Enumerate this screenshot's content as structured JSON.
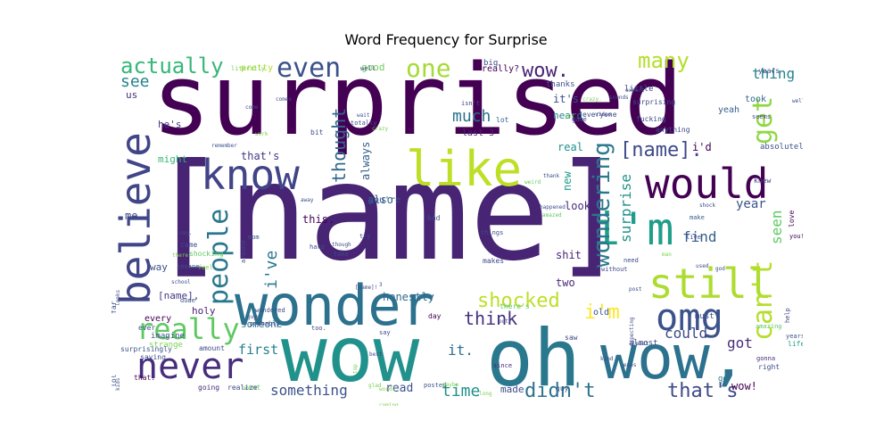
{
  "chart_data": {
    "type": "wordcloud",
    "title": "Word Frequency for Surprise",
    "words": [
      {
        "text": "[name]",
        "size": 150,
        "color": "#482475"
      },
      {
        "text": "surprised",
        "size": 110,
        "color": "#440154"
      },
      {
        "text": "wonder",
        "size": 62,
        "color": "#2c728e"
      },
      {
        "text": "wow",
        "size": 86,
        "color": "#21918c"
      },
      {
        "text": "oh",
        "size": 88,
        "color": "#2a788e"
      },
      {
        "text": "wow,",
        "size": 68,
        "color": "#2c728e"
      },
      {
        "text": "like",
        "size": 54,
        "color": "#bddf26"
      },
      {
        "text": "know",
        "size": 46,
        "color": "#414487"
      },
      {
        "text": "would",
        "size": 46,
        "color": "#440154"
      },
      {
        "text": "believe",
        "size": 46,
        "color": "#404688"
      },
      {
        "text": "i'm",
        "size": 50,
        "color": "#1f9e89"
      },
      {
        "text": "still",
        "size": 46,
        "color": "#addc30"
      },
      {
        "text": "omg",
        "size": 42,
        "color": "#3b528b"
      },
      {
        "text": "never",
        "size": 40,
        "color": "#472d7b"
      },
      {
        "text": "even",
        "size": 30,
        "color": "#3b528b"
      },
      {
        "text": "one",
        "size": 28,
        "color": "#a5db36"
      },
      {
        "text": "get",
        "size": 30,
        "color": "#8fd744"
      },
      {
        "text": "can't",
        "size": 30,
        "color": "#b5de2b"
      },
      {
        "text": "people",
        "size": 30,
        "color": "#2a788e"
      },
      {
        "text": "really",
        "size": 32,
        "color": "#5ec962"
      },
      {
        "text": "wondering",
        "size": 26,
        "color": "#2a788e"
      },
      {
        "text": "actually",
        "size": 24,
        "color": "#35b779"
      },
      {
        "text": "many",
        "size": 24,
        "color": "#b5de2b"
      },
      {
        "text": "wow.",
        "size": 22,
        "color": "#482475"
      },
      {
        "text": "shocked",
        "size": 22,
        "color": "#bddf26"
      },
      {
        "text": "i'm",
        "size": 22,
        "color": "#fde725"
      },
      {
        "text": "didn't",
        "size": 22,
        "color": "#2c728e"
      },
      {
        "text": "that's",
        "size": 22,
        "color": "#3e4a89"
      },
      {
        "text": "[name].",
        "size": 22,
        "color": "#3e4a89"
      },
      {
        "text": "thought",
        "size": 20,
        "color": "#31688e"
      },
      {
        "text": "think",
        "size": 20,
        "color": "#46337e"
      },
      {
        "text": "much",
        "size": 18,
        "color": "#2c728e"
      },
      {
        "text": "time",
        "size": 18,
        "color": "#21918c"
      },
      {
        "text": "something",
        "size": 16,
        "color": "#3b528b"
      },
      {
        "text": "see",
        "size": 18,
        "color": "#26828e"
      },
      {
        "text": "thing",
        "size": 16,
        "color": "#26828e"
      },
      {
        "text": "i've",
        "size": 18,
        "color": "#2a788e"
      },
      {
        "text": "surprise",
        "size": 16,
        "color": "#21918c"
      },
      {
        "text": "find",
        "size": 16,
        "color": "#355f8d"
      },
      {
        "text": "seen",
        "size": 16,
        "color": "#5ec962"
      },
      {
        "text": "could",
        "size": 16,
        "color": "#3e4a89"
      },
      {
        "text": "got",
        "size": 16,
        "color": "#472d7b"
      },
      {
        "text": "it.",
        "size": 16,
        "color": "#2c728e"
      },
      {
        "text": "first",
        "size": 15,
        "color": "#26828e"
      },
      {
        "text": "year",
        "size": 14,
        "color": "#3b528b"
      },
      {
        "text": "me.",
        "size": 12,
        "color": "#3e4a89"
      },
      {
        "text": "wow!",
        "size": 12,
        "color": "#440154"
      },
      {
        "text": "honestly",
        "size": 12,
        "color": "#31688e"
      },
      {
        "text": "read",
        "size": 13,
        "color": "#3b528b"
      },
      {
        "text": "two",
        "size": 12,
        "color": "#482878"
      },
      {
        "text": "new",
        "size": 12,
        "color": "#1f9e89"
      },
      {
        "text": "look",
        "size": 12,
        "color": "#472d7b"
      },
      {
        "text": "made",
        "size": 11,
        "color": "#3e4a89"
      },
      {
        "text": "this.",
        "size": 12,
        "color": "#440154"
      },
      {
        "text": "that's",
        "size": 12,
        "color": "#443983"
      },
      {
        "text": "also",
        "size": 12,
        "color": "#31688e"
      },
      {
        "text": "always",
        "size": 12,
        "color": "#355f8d"
      },
      {
        "text": "last 3",
        "size": 10,
        "color": "#482475"
      },
      {
        "text": "it's",
        "size": 12,
        "color": "#3b528b"
      },
      {
        "text": "heard",
        "size": 11,
        "color": "#277f8e"
      },
      {
        "text": "real",
        "size": 12,
        "color": "#21918c"
      },
      {
        "text": "shit",
        "size": 12,
        "color": "#481f70"
      },
      {
        "text": "i'd",
        "size": 12,
        "color": "#440154"
      },
      {
        "text": "took",
        "size": 10,
        "color": "#31688e"
      },
      {
        "text": "yeah",
        "size": 10,
        "color": "#355f8d"
      },
      {
        "text": "us",
        "size": 11,
        "color": "#472d7b"
      },
      {
        "text": "he's",
        "size": 11,
        "color": "#443983"
      },
      {
        "text": "might",
        "size": 11,
        "color": "#35b779"
      },
      {
        "text": "way",
        "size": 11,
        "color": "#3b528b"
      },
      {
        "text": "[name],",
        "size": 11,
        "color": "#443983"
      },
      {
        "text": "holy",
        "size": 11,
        "color": "#481f70"
      },
      {
        "text": "every",
        "size": 10,
        "color": "#440154"
      },
      {
        "text": "someone",
        "size": 11,
        "color": "#2c728e"
      },
      {
        "text": "old",
        "size": 10,
        "color": "#3b528b"
      },
      {
        "text": "good",
        "size": 11,
        "color": "#6ece58"
      },
      {
        "text": "really?",
        "size": 10,
        "color": "#440154"
      },
      {
        "text": "you're",
        "size": 10,
        "color": "#3b528b"
      },
      {
        "text": "must",
        "size": 9,
        "color": "#3e4a89"
      },
      {
        "text": "absolutely",
        "size": 9,
        "color": "#3b528b"
      },
      {
        "text": "pretty",
        "size": 10,
        "color": "#addc30"
      },
      {
        "text": "thanks",
        "size": 9,
        "color": "#3b528b"
      },
      {
        "text": "little",
        "size": 9,
        "color": "#3e4a89"
      },
      {
        "text": "years",
        "size": 8,
        "color": "#3e4a89"
      },
      {
        "text": "love",
        "size": 8,
        "color": "#440154"
      },
      {
        "text": "you!",
        "size": 7,
        "color": "#440154"
      },
      {
        "text": "go",
        "size": 9,
        "color": "#2a788e"
      },
      {
        "text": "right",
        "size": 8,
        "color": "#3e4a89"
      },
      {
        "text": "gonna",
        "size": 7,
        "color": "#472d7b"
      },
      {
        "text": "life",
        "size": 8,
        "color": "#1f9e89"
      },
      {
        "text": "help",
        "size": 7,
        "color": "#3e4a89"
      },
      {
        "text": "years.",
        "size": 7,
        "color": "#3b528b"
      },
      {
        "text": "amazing",
        "size": 7,
        "color": "#5ec962"
      },
      {
        "text": "anything",
        "size": 8,
        "color": "#3e4a89"
      },
      {
        "text": "knew",
        "size": 8,
        "color": "#443983"
      },
      {
        "text": "make",
        "size": 7,
        "color": "#355f8d"
      },
      {
        "text": "live",
        "size": 7,
        "color": "#3e4a89"
      },
      {
        "text": "almost",
        "size": 9,
        "color": "#3e4a89"
      },
      {
        "text": "posted",
        "size": 7,
        "color": "#3b528b"
      },
      {
        "text": "since",
        "size": 7,
        "color": "#482878"
      },
      {
        "text": "guy",
        "size": 8,
        "color": "#3b528b"
      },
      {
        "text": "saw",
        "size": 8,
        "color": "#3e4a89"
      },
      {
        "text": "day",
        "size": 8,
        "color": "#440154"
      },
      {
        "text": "went",
        "size": 8,
        "color": "#6ece58"
      },
      {
        "text": "realize",
        "size": 8,
        "color": "#3e4a89"
      },
      {
        "text": "going",
        "size": 8,
        "color": "#472d7b"
      },
      {
        "text": "that.",
        "size": 8,
        "color": "#440154"
      },
      {
        "text": "saying",
        "size": 8,
        "color": "#3e4a89"
      },
      {
        "text": "strange",
        "size": 9,
        "color": "#7ad151"
      },
      {
        "text": "amount",
        "size": 8,
        "color": "#3e4a89"
      },
      {
        "text": "imagine",
        "size": 9,
        "color": "#3b528b"
      },
      {
        "text": "ever",
        "size": 8,
        "color": "#3b528b"
      },
      {
        "text": "surprisingly",
        "size": 8,
        "color": "#3b528b"
      },
      {
        "text": "lol",
        "size": 8,
        "color": "#3b528b"
      },
      {
        "text": "far",
        "size": 8,
        "color": "#3b528b"
      },
      {
        "text": "came",
        "size": 8,
        "color": "#3e4a89"
      },
      {
        "text": "shocking",
        "size": 8,
        "color": "#5ec962"
      },
      {
        "text": "insane",
        "size": 7,
        "color": "#3b528b"
      },
      {
        "text": "mom",
        "size": 7,
        "color": "#3b528b"
      },
      {
        "text": "dude",
        "size": 7,
        "color": "#3b528b"
      },
      {
        "text": "feel",
        "size": 7,
        "color": "#7ad151"
      },
      {
        "text": "remember",
        "size": 6,
        "color": "#3b528b"
      },
      {
        "text": "literally",
        "size": 7,
        "color": "#7ad151"
      },
      {
        "text": "come",
        "size": 6,
        "color": "#3e4a89"
      },
      {
        "text": "comes",
        "size": 6,
        "color": "#3e4a89"
      },
      {
        "text": "isn't",
        "size": 7,
        "color": "#3e4a89"
      },
      {
        "text": "totally",
        "size": 7,
        "color": "#3e4a89"
      },
      {
        "text": "bit",
        "size": 8,
        "color": "#3b528b"
      },
      {
        "text": "wait",
        "size": 6,
        "color": "#3b528b"
      },
      {
        "text": "lot",
        "size": 8,
        "color": "#355f8d"
      },
      {
        "text": "well",
        "size": 7,
        "color": "#3e4a89"
      },
      {
        "text": "big",
        "size": 9,
        "color": "#3e4a89"
      },
      {
        "text": "fucking",
        "size": 8,
        "color": "#3e4a89"
      },
      {
        "text": "seems",
        "size": 7,
        "color": "#3e4a89"
      },
      {
        "text": "surprising",
        "size": 8,
        "color": "#3e4a89"
      },
      {
        "text": "everyone",
        "size": 8,
        "color": "#3e4a89"
      },
      {
        "text": "game",
        "size": 7,
        "color": "#3e4a89"
      },
      {
        "text": "video",
        "size": 6,
        "color": "#3e4a89"
      },
      {
        "text": "thank",
        "size": 6,
        "color": "#3e4a89"
      },
      {
        "text": "weird",
        "size": 6,
        "color": "#5ec962"
      },
      {
        "text": "bad",
        "size": 8,
        "color": "#3e4a89"
      },
      {
        "text": "things",
        "size": 7,
        "color": "#3e4a89"
      },
      {
        "text": "amazed",
        "size": 6,
        "color": "#5ec962"
      },
      {
        "text": "happened",
        "size": 6,
        "color": "#3e4a89"
      },
      {
        "text": "try",
        "size": 7,
        "color": "#3e4a89"
      },
      {
        "text": "makes",
        "size": 8,
        "color": "#3e4a89"
      },
      {
        "text": "hard",
        "size": 7,
        "color": "#3e4a89"
      },
      {
        "text": "take",
        "size": 7,
        "color": "#3e4a89"
      },
      {
        "text": "without",
        "size": 7,
        "color": "#3e4a89"
      },
      {
        "text": "need",
        "size": 7,
        "color": "#3e4a89"
      },
      {
        "text": "used",
        "size": 6,
        "color": "#3e4a89"
      },
      {
        "text": "god",
        "size": 6,
        "color": "#3e4a89"
      },
      {
        "text": "man",
        "size": 6,
        "color": "#7ad151"
      },
      {
        "text": "post",
        "size": 6,
        "color": "#3e4a89"
      },
      {
        "text": "there's",
        "size": 8,
        "color": "#5ec962"
      },
      {
        "text": "around",
        "size": 7,
        "color": "#3e4a89"
      },
      {
        "text": "guys",
        "size": 6,
        "color": "#3e4a89"
      },
      {
        "text": "probably",
        "size": 7,
        "color": "#3e4a89"
      },
      {
        "text": "wondered",
        "size": 7,
        "color": "#3e4a89"
      },
      {
        "text": "too.",
        "size": 7,
        "color": "#3e4a89"
      },
      {
        "text": "expecting",
        "size": 6,
        "color": "#3e4a89"
      },
      {
        "text": "least",
        "size": 6,
        "color": "#3e4a89"
      },
      {
        "text": "school",
        "size": 6,
        "color": "#3e4a89"
      },
      {
        "text": "looks",
        "size": 6,
        "color": "#3e4a89"
      },
      {
        "text": "kind",
        "size": 6,
        "color": "#3e4a89"
      },
      {
        "text": "kids",
        "size": 6,
        "color": "#3e4a89"
      },
      {
        "text": "crazy",
        "size": 6,
        "color": "#7ad151"
      },
      {
        "text": "though",
        "size": 6,
        "color": "#3e4a89"
      },
      {
        "text": "say",
        "size": 7,
        "color": "#3e4a89"
      },
      {
        "text": "best",
        "size": 6,
        "color": "#3e4a89"
      },
      {
        "text": "glad",
        "size": 6,
        "color": "#7ad151"
      },
      {
        "text": "words",
        "size": 6,
        "color": "#7ad151"
      },
      {
        "text": "maybe",
        "size": 6,
        "color": "#7ad151"
      },
      {
        "text": "eyes",
        "size": 6,
        "color": "#3e4a89"
      },
      {
        "text": "expect",
        "size": 6,
        "color": "#3e4a89"
      },
      {
        "text": "sounds",
        "size": 6,
        "color": "#3e4a89"
      },
      {
        "text": "shock",
        "size": 6,
        "color": "#3e4a89"
      },
      {
        "text": "crazy.",
        "size": 6,
        "color": "#7ad151"
      },
      {
        "text": "omg.",
        "size": 6,
        "color": "#3e4a89"
      },
      {
        "text": "away",
        "size": 6,
        "color": "#3e4a89"
      },
      {
        "text": "well,",
        "size": 6,
        "color": "#3e4a89"
      },
      {
        "text": "there",
        "size": 6,
        "color": "#7ad151"
      },
      {
        "text": "put",
        "size": 6,
        "color": "#3e4a89"
      },
      {
        "text": "top",
        "size": 6,
        "color": "#7ad151"
      },
      {
        "text": "coming",
        "size": 6,
        "color": "#7ad151"
      },
      {
        "text": "work",
        "size": 6,
        "color": "#7ad151"
      },
      {
        "text": "yet",
        "size": 6,
        "color": "#7ad151"
      },
      {
        "text": "long",
        "size": 6,
        "color": "#7ad151"
      },
      {
        "text": "3",
        "size": 6,
        "color": "#3e4a89"
      },
      {
        "text": "[name]!",
        "size": 6,
        "color": "#3e4a89"
      }
    ]
  }
}
